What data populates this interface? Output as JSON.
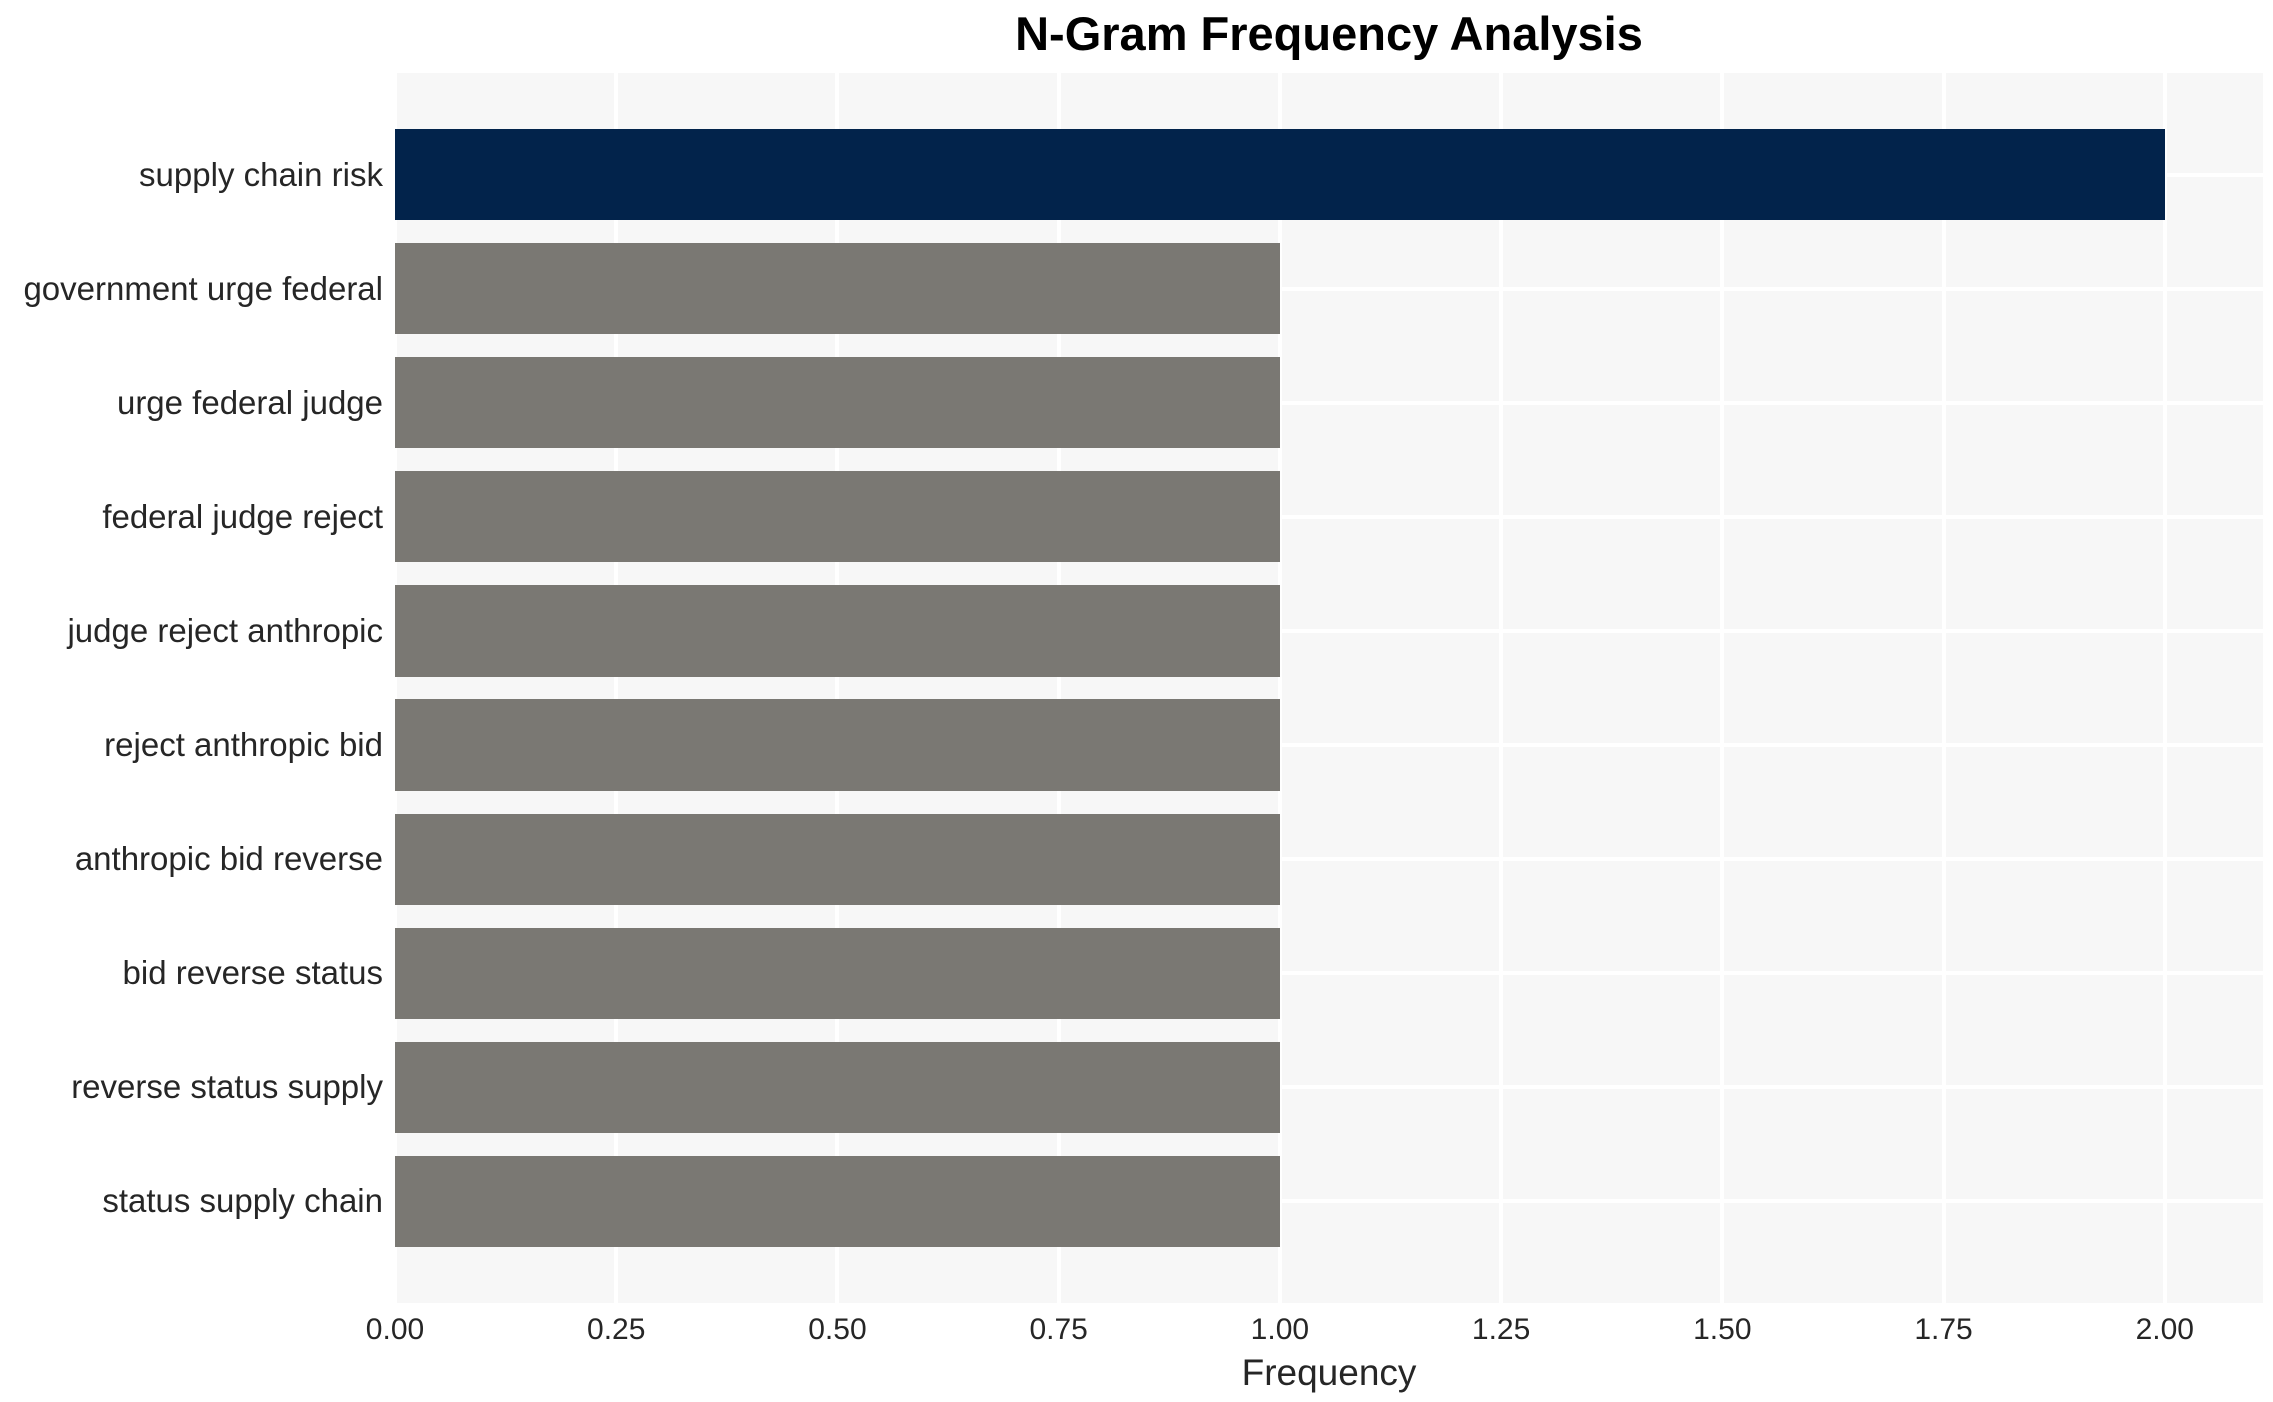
{
  "page": {
    "background_color": "#ffffff"
  },
  "chart_data": {
    "type": "bar",
    "orientation": "horizontal",
    "title": "N-Gram Frequency Analysis",
    "xlabel": "Frequency",
    "ylabel": "",
    "categories": [
      "supply chain risk",
      "government urge federal",
      "urge federal judge",
      "federal judge reject",
      "judge reject anthropic",
      "reject anthropic bid",
      "anthropic bid reverse",
      "bid reverse status",
      "reverse status supply",
      "status supply chain"
    ],
    "values": [
      2.0,
      1.0,
      1.0,
      1.0,
      1.0,
      1.0,
      1.0,
      1.0,
      1.0,
      1.0
    ],
    "bar_colors": [
      "#02234b",
      "#7a7873",
      "#7a7873",
      "#7a7873",
      "#7a7873",
      "#7a7873",
      "#7a7873",
      "#7a7873",
      "#7a7873",
      "#7a7873"
    ],
    "highlight_color": "#02234b",
    "default_bar_color": "#7a7873",
    "xlim": [
      0,
      2.111
    ],
    "xticks": [
      0.0,
      0.25,
      0.5,
      0.75,
      1.0,
      1.25,
      1.5,
      1.75,
      2.0
    ],
    "xtick_labels": [
      "0.00",
      "0.25",
      "0.50",
      "0.75",
      "1.00",
      "1.25",
      "1.50",
      "1.75",
      "2.00"
    ],
    "grid": true,
    "legend_position": "none",
    "plot_background": "#f7f7f7",
    "gridline_color": "#ffffff",
    "text_color": "#262626",
    "title_color": "#000000"
  }
}
